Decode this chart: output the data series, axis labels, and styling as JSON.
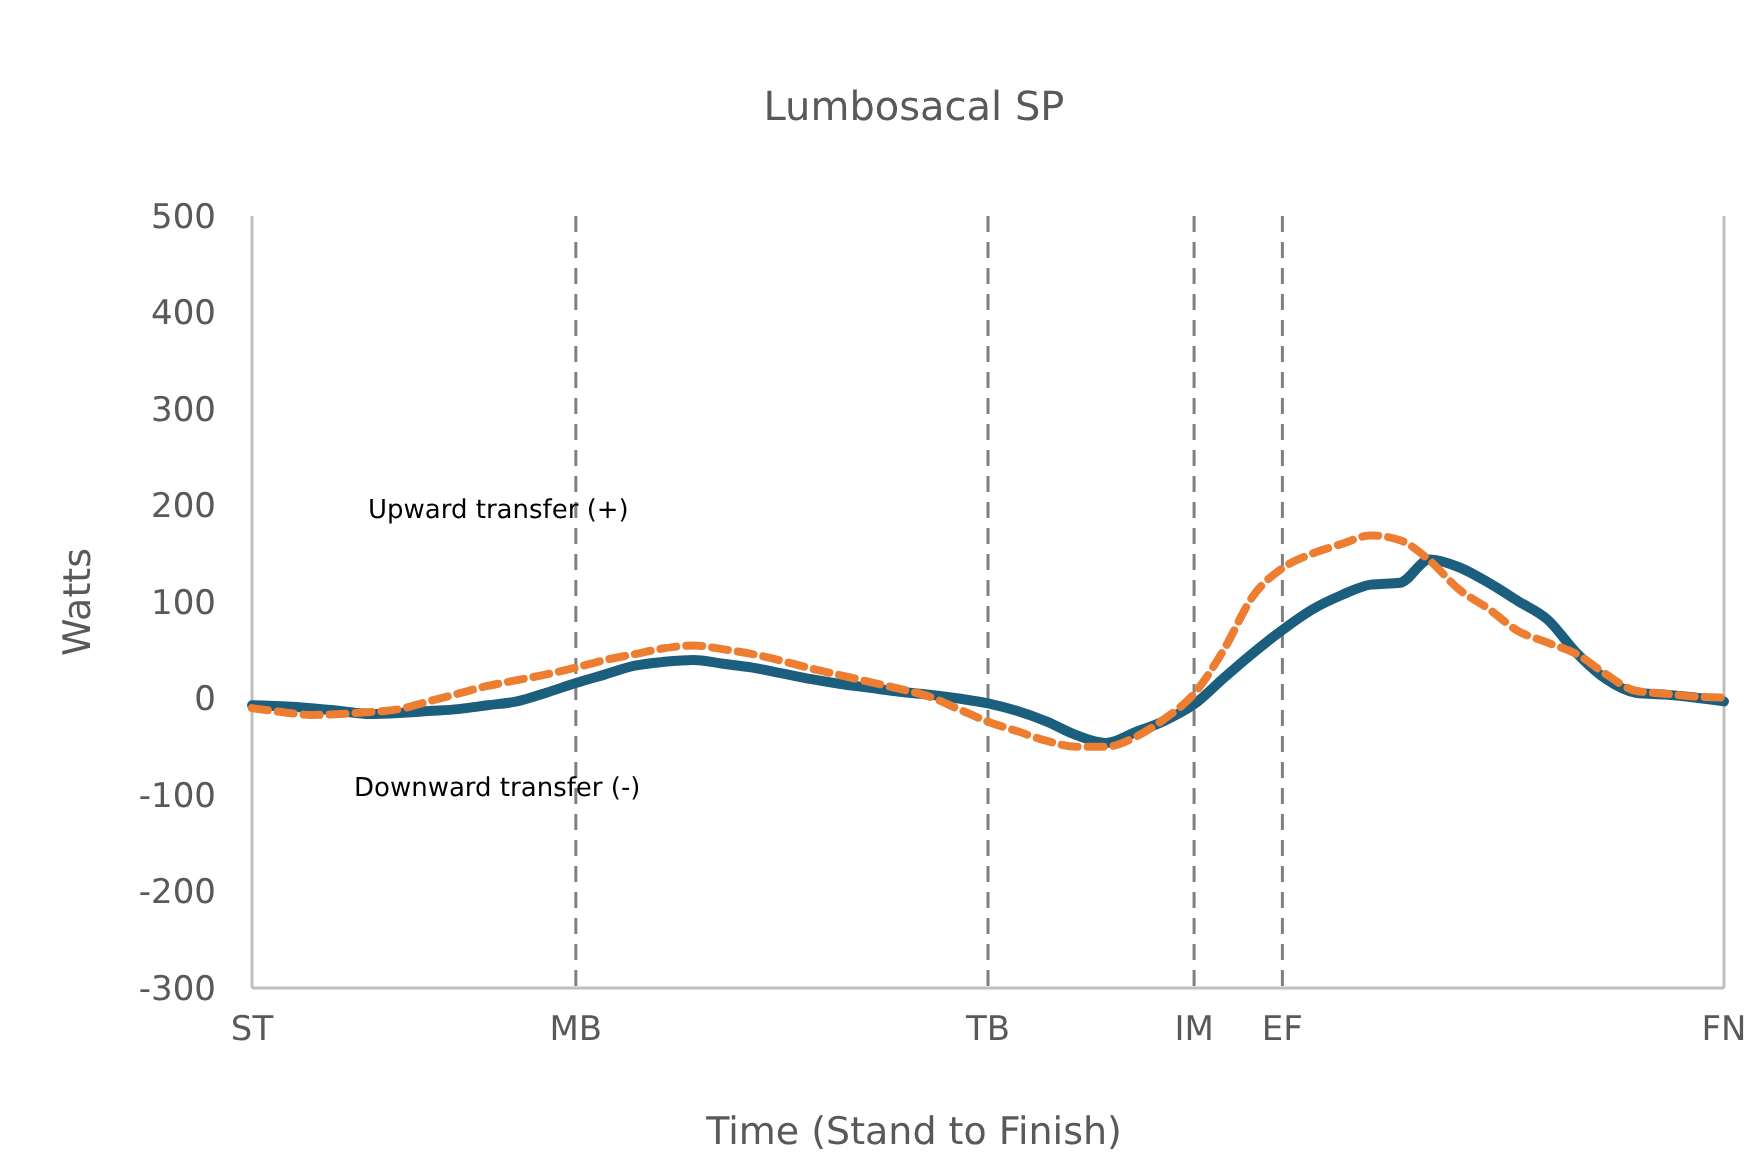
{
  "chart_data": {
    "type": "line",
    "title": "Lumbosacal SP",
    "xlabel": "Time (Stand to Finish)",
    "ylabel": "Watts",
    "categories": [
      "ST",
      null,
      null,
      null,
      null,
      null,
      null,
      null,
      null,
      null,
      null,
      "MB",
      null,
      null,
      null,
      null,
      null,
      null,
      null,
      null,
      null,
      null,
      null,
      null,
      null,
      "TB",
      null,
      null,
      null,
      null,
      null,
      null,
      "IM",
      null,
      null,
      "EF",
      null,
      null,
      null,
      null,
      null,
      null,
      null,
      null,
      null,
      null,
      null,
      null,
      null,
      null,
      "FN"
    ],
    "ylim": [
      -300,
      500
    ],
    "yticks": [
      -300,
      -200,
      -100,
      0,
      100,
      200,
      300,
      400,
      500
    ],
    "grid": false,
    "marker": "none",
    "annotations": [
      "Upward transfer (+)",
      "Downward transfer (-)"
    ],
    "ref_lines": [
      {
        "axis": "x",
        "value": "MB",
        "color": "#808080",
        "line_style": "dashed"
      },
      {
        "axis": "x",
        "value": "TB",
        "color": "#808080",
        "line_style": "dashed"
      },
      {
        "axis": "x",
        "value": "IM",
        "color": "#808080",
        "line_style": "dashed"
      },
      {
        "axis": "x",
        "value": "EF",
        "color": "#808080",
        "line_style": "dashed"
      }
    ],
    "series": [
      {
        "color": "#1b5e7e",
        "line_style": "solid",
        "values": [
          -7,
          -8,
          -10,
          -13,
          -16,
          -15,
          -13,
          -11,
          -7,
          -3,
          6,
          16,
          25,
          34,
          38,
          40,
          36,
          32,
          26,
          20,
          15,
          11,
          7,
          4,
          0,
          -5,
          -13,
          -24,
          -38,
          -46,
          -35,
          -23,
          -6,
          21,
          47,
          71,
          92,
          107,
          118,
          120,
          144,
          136,
          120,
          101,
          82,
          47,
          20,
          6,
          4,
          1,
          -3
        ]
      },
      {
        "color": "#ed7d31",
        "line_style": "dashed",
        "values": [
          -10,
          -14,
          -17,
          -16,
          -14,
          -11,
          -3,
          5,
          13,
          19,
          25,
          32,
          40,
          46,
          52,
          55,
          51,
          46,
          39,
          31,
          24,
          17,
          10,
          2,
          -11,
          -24,
          -34,
          -44,
          -50,
          -50,
          -40,
          -21,
          5,
          50,
          106,
          135,
          150,
          160,
          169,
          164,
          143,
          113,
          93,
          70,
          58,
          46,
          25,
          8,
          5,
          2,
          1
        ]
      }
    ]
  }
}
